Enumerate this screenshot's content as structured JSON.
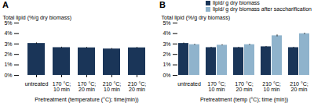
{
  "chart_data": [
    {
      "type": "bar",
      "title": "A",
      "categories": [
        "untreated",
        "170 °C; 10 min",
        "170 °C; 20 min",
        "210 °C; 10 min",
        "210 °C; 20 min"
      ],
      "values": [
        3.05,
        2.65,
        2.63,
        2.52,
        2.63
      ],
      "errors": [
        0.06,
        0.05,
        0.05,
        0.05,
        0.05
      ],
      "color": "#1a3558",
      "xlabel": "Pretreatment (temperature (°C); time(min))",
      "ylabel": "Total lipid (%/g dry biomass)",
      "ylim": [
        0,
        5
      ],
      "yticks": [
        {
          "value": 0,
          "label": "0%"
        },
        {
          "value": 1,
          "label": "1%"
        },
        {
          "value": 2,
          "label": "2%"
        },
        {
          "value": 3,
          "label": "3%"
        },
        {
          "value": 4,
          "label": "4%"
        },
        {
          "value": 5,
          "label": "5%"
        }
      ]
    },
    {
      "type": "bar",
      "title": "B",
      "categories": [
        "untreated",
        "170 °C; 10 min",
        "170 °C; 20 min",
        "210 °C; 10 min",
        "210 °C; 20 min"
      ],
      "series": [
        {
          "name": "lipid/ g dry biomass",
          "color": "#1a3558",
          "values": [
            3.05,
            2.65,
            2.65,
            2.73,
            2.65
          ],
          "errors": [
            0.05,
            0.04,
            0.04,
            0.04,
            0.04
          ]
        },
        {
          "name": "lipid/ g dry biomass after saccharification",
          "color": "#8fb3cc",
          "values": [
            2.93,
            2.88,
            2.93,
            3.78,
            3.98
          ],
          "errors": [
            0.05,
            0.05,
            0.05,
            0.09,
            0.06
          ]
        }
      ],
      "xlabel": "Pretreatment (temp (°C); time (min))",
      "ylabel": "Total lipid (%/g dry biomass)",
      "ylim": [
        0,
        5
      ],
      "yticks": [
        {
          "value": 0,
          "label": "0%"
        },
        {
          "value": 1,
          "label": "1%"
        },
        {
          "value": 2,
          "label": "2%"
        },
        {
          "value": 3,
          "label": "3%"
        },
        {
          "value": 4,
          "label": "4%"
        },
        {
          "value": 5,
          "label": "5%"
        }
      ],
      "legend": "upper right"
    }
  ]
}
